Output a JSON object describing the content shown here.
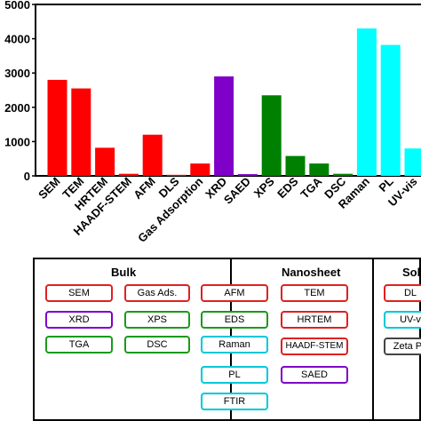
{
  "chart_data": {
    "type": "bar",
    "categories": [
      "SEM",
      "TEM",
      "HRTEM",
      "HAADF-STEM",
      "AFM",
      "DLS",
      "Gas Adsorption",
      "XRD",
      "SAED",
      "XPS",
      "EDS",
      "TGA",
      "DSC",
      "Raman",
      "PL",
      "UV-vis"
    ],
    "values": [
      2800,
      2550,
      820,
      60,
      1200,
      30,
      360,
      2900,
      50,
      2350,
      580,
      360,
      60,
      4300,
      3820,
      800
    ],
    "bar_colors": [
      "#ff0000",
      "#ff0000",
      "#ff0000",
      "#ff0000",
      "#ff0000",
      "#ff0000",
      "#ff0000",
      "#7f00c8",
      "#7f00c8",
      "#008000",
      "#008000",
      "#008000",
      "#008000",
      "#00ffff",
      "#00ffff",
      "#00ffff"
    ],
    "ylim": [
      0,
      5000
    ],
    "yticks": [
      "0",
      "1000",
      "2000",
      "3000",
      "4000",
      "5000"
    ],
    "ytick_values": [
      0,
      1000,
      2000,
      3000,
      4000,
      5000
    ],
    "grid": false
  },
  "legend": {
    "sections": [
      {
        "title": "Bulk"
      },
      {
        "title": "Nanosheet"
      },
      {
        "title": "Solu"
      }
    ],
    "tags": [
      {
        "label": "SEM",
        "color": "#e02020"
      },
      {
        "label": "Gas Ads.",
        "color": "#e02020"
      },
      {
        "label": "AFM",
        "color": "#e02020"
      },
      {
        "label": "TEM",
        "color": "#e02020"
      },
      {
        "label": "DL",
        "color": "#e02020"
      },
      {
        "label": "XRD",
        "color": "#7f00c8"
      },
      {
        "label": "XPS",
        "color": "#1a9a1a"
      },
      {
        "label": "EDS",
        "color": "#1a9a1a"
      },
      {
        "label": "HRTEM",
        "color": "#e02020"
      },
      {
        "label": "UV-v",
        "color": "#00c8d8"
      },
      {
        "label": "TGA",
        "color": "#1a9a1a"
      },
      {
        "label": "DSC",
        "color": "#1a9a1a"
      },
      {
        "label": "Raman",
        "color": "#00c8d8"
      },
      {
        "label": "HAADF-STEM",
        "color": "#e02020"
      },
      {
        "label": "Zeta Po",
        "color": "#444444"
      },
      {
        "label": "PL",
        "color": "#00c8d8"
      },
      {
        "label": "SAED",
        "color": "#7f00c8"
      },
      {
        "label": "FTIR",
        "color": "#00c8d8"
      }
    ]
  }
}
